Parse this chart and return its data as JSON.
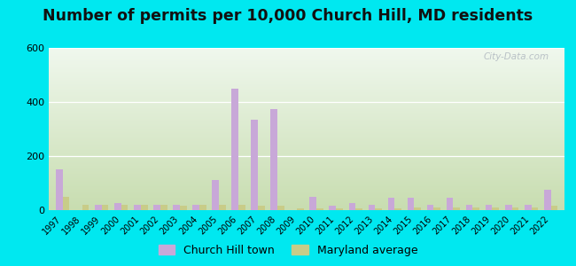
{
  "title": "Number of permits per 10,000 Church Hill, MD residents",
  "years": [
    1997,
    1998,
    1999,
    2000,
    2001,
    2002,
    2003,
    2004,
    2005,
    2006,
    2007,
    2008,
    2009,
    2010,
    2011,
    2012,
    2013,
    2014,
    2015,
    2016,
    2017,
    2018,
    2019,
    2020,
    2021,
    2022
  ],
  "church_hill": [
    150,
    0,
    20,
    25,
    20,
    20,
    20,
    20,
    110,
    450,
    335,
    375,
    0,
    50,
    15,
    25,
    20,
    45,
    45,
    20,
    45,
    20,
    20,
    20,
    20,
    75
  ],
  "maryland_avg": [
    50,
    20,
    20,
    20,
    20,
    20,
    15,
    20,
    20,
    20,
    15,
    15,
    5,
    5,
    5,
    5,
    5,
    5,
    10,
    10,
    10,
    10,
    10,
    10,
    10,
    15
  ],
  "church_hill_color": "#c8a8d8",
  "maryland_color": "#c8cc88",
  "outer_bg": "#00e8f0",
  "bg_gradient_top": "#c8ddb0",
  "bg_gradient_bottom": "#f0f8ee",
  "ylim": [
    0,
    600
  ],
  "yticks": [
    0,
    200,
    400,
    600
  ],
  "bar_width": 0.35,
  "title_fontsize": 12.5,
  "legend_labels": [
    "Church Hill town",
    "Maryland average"
  ],
  "watermark": "City-Data.com"
}
